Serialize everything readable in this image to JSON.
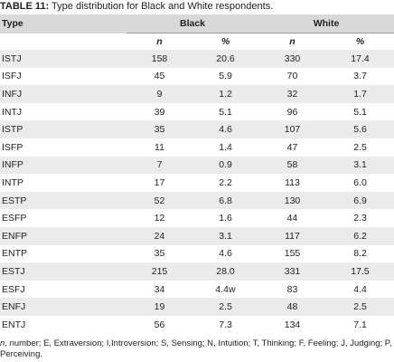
{
  "caption": {
    "label": "TABLE 11:",
    "text": " Type distribution for Black and White respondents."
  },
  "table": {
    "header": [
      "Type",
      "Black",
      "White"
    ],
    "subheader": [
      "n",
      "%",
      "n",
      "%"
    ],
    "rows": [
      [
        "ISTJ",
        "158",
        "20.6",
        "330",
        "17.4"
      ],
      [
        "ISFJ",
        "45",
        "5.9",
        "70",
        "3.7"
      ],
      [
        "INFJ",
        "9",
        "1.2",
        "32",
        "1.7"
      ],
      [
        "INTJ",
        "39",
        "5.1",
        "96",
        "5.1"
      ],
      [
        "ISTP",
        "35",
        "4.6",
        "107",
        "5.6"
      ],
      [
        "ISFP",
        "11",
        "1.4",
        "47",
        "2.5"
      ],
      [
        "INFP",
        "7",
        "0.9",
        "58",
        "3.1"
      ],
      [
        "INTP",
        "17",
        "2.2",
        "113",
        "6.0"
      ],
      [
        "ESTP",
        "52",
        "6.8",
        "130",
        "6.9"
      ],
      [
        "ESFP",
        "12",
        "1.6",
        "44",
        "2.3"
      ],
      [
        "ENFP",
        "24",
        "3.1",
        "117",
        "6.2"
      ],
      [
        "ENTP",
        "35",
        "4.6",
        "155",
        "8.2"
      ],
      [
        "ESTJ",
        "215",
        "28.0",
        "331",
        "17.5"
      ],
      [
        "ESFJ",
        "34",
        "4.4w",
        "83",
        "4.4"
      ],
      [
        "ENFJ",
        "19",
        "2.5",
        "48",
        "2.5"
      ],
      [
        "ENTJ",
        "56",
        "7.3",
        "134",
        "7.1"
      ]
    ]
  },
  "footnote": {
    "symbol": "n",
    "text": ", number; E, Extraversion; I,Introversion; S, Sensing; N, Intuition; T, Thinking; F, Feeling; J, Judging; P, Perceiving."
  }
}
